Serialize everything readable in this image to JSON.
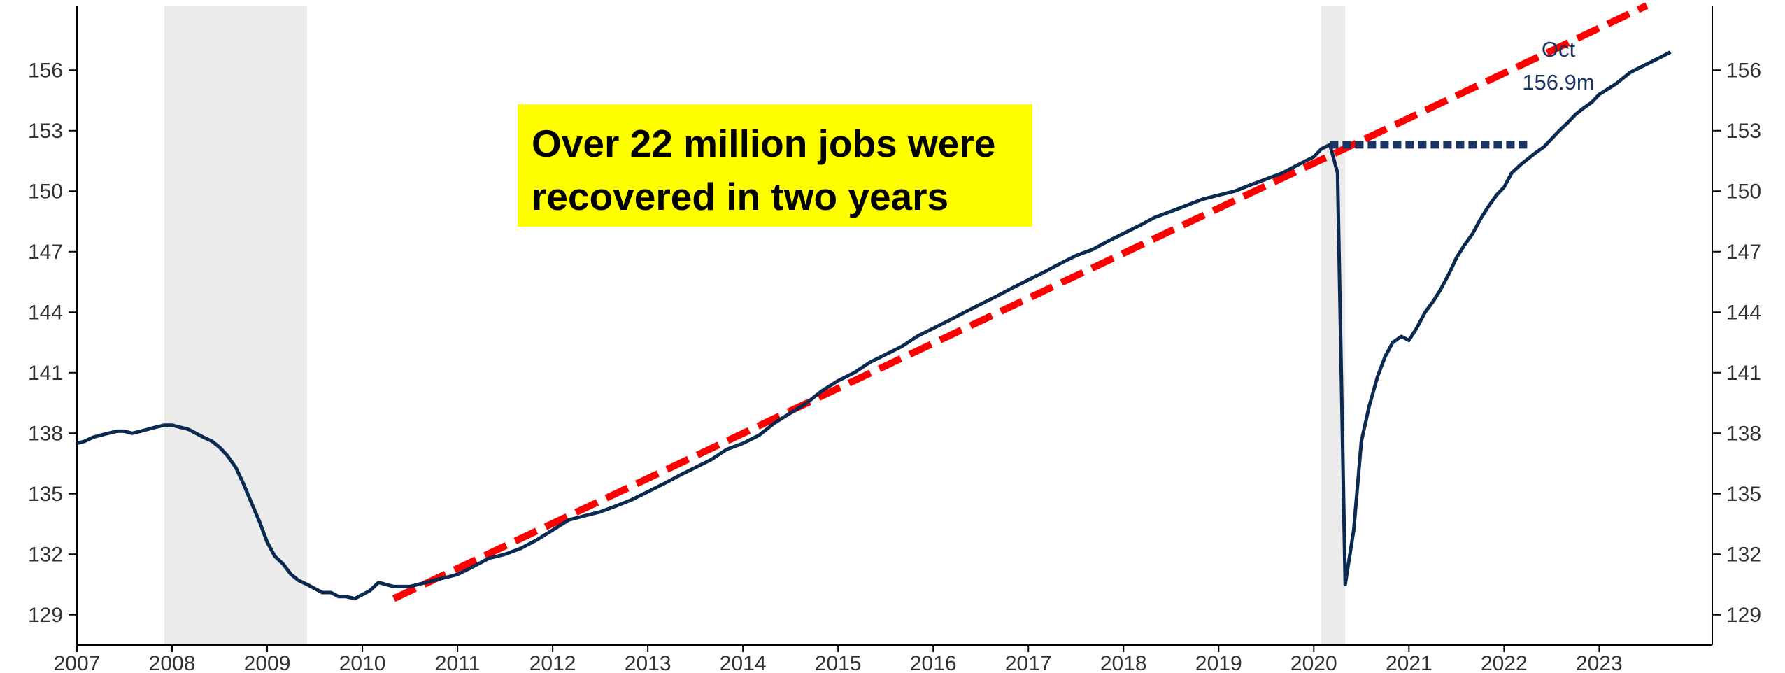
{
  "callout": {
    "line1": "Over 22 million jobs were",
    "line2": "recovered in two years"
  },
  "annotation": {
    "month": "Oct",
    "value": "156.9m"
  },
  "colors": {
    "series": "#0b2a52",
    "trend": "#ff0000",
    "recession": "#ebebeb",
    "callout_bg": "#ffff00",
    "gap_line": "#1c3461"
  },
  "chart_data": {
    "type": "line",
    "title": "",
    "xlabel": "",
    "ylabel": "",
    "xlim": [
      2007.0,
      2023.85
    ],
    "ylim": [
      127.5,
      159.2
    ],
    "x_ticks": [
      "2007",
      "2008",
      "2009",
      "2010",
      "2011",
      "2012",
      "2013",
      "2014",
      "2015",
      "2016",
      "2017",
      "2018",
      "2019",
      "2020",
      "2021",
      "2022",
      "2023"
    ],
    "y_ticks": [
      "129",
      "132",
      "135",
      "138",
      "141",
      "144",
      "147",
      "150",
      "153",
      "156"
    ],
    "y_ticks_right": true,
    "grid": false,
    "legend": "none",
    "recessions": [
      [
        2007.92,
        2009.42
      ],
      [
        2020.08,
        2020.33
      ]
    ],
    "series": [
      {
        "style": "solid",
        "x": [
          2007.0,
          2007.08,
          2007.17,
          2007.25,
          2007.33,
          2007.42,
          2007.5,
          2007.58,
          2007.67,
          2007.75,
          2007.83,
          2007.92,
          2008.0,
          2008.08,
          2008.17,
          2008.25,
          2008.33,
          2008.42,
          2008.5,
          2008.58,
          2008.67,
          2008.75,
          2008.83,
          2008.92,
          2009.0,
          2009.08,
          2009.17,
          2009.25,
          2009.33,
          2009.42,
          2009.5,
          2009.58,
          2009.67,
          2009.75,
          2009.83,
          2009.92,
          2010.0,
          2010.08,
          2010.17,
          2010.25,
          2010.33,
          2010.42,
          2010.5,
          2010.58,
          2010.67,
          2010.75,
          2010.83,
          2010.92,
          2011.0,
          2011.17,
          2011.33,
          2011.5,
          2011.67,
          2011.83,
          2012.0,
          2012.17,
          2012.33,
          2012.5,
          2012.67,
          2012.83,
          2013.0,
          2013.17,
          2013.33,
          2013.5,
          2013.67,
          2013.83,
          2014.0,
          2014.17,
          2014.33,
          2014.5,
          2014.67,
          2014.83,
          2015.0,
          2015.17,
          2015.33,
          2015.5,
          2015.67,
          2015.83,
          2016.0,
          2016.17,
          2016.33,
          2016.5,
          2016.67,
          2016.83,
          2017.0,
          2017.17,
          2017.33,
          2017.5,
          2017.67,
          2017.83,
          2018.0,
          2018.17,
          2018.33,
          2018.5,
          2018.67,
          2018.83,
          2019.0,
          2019.17,
          2019.33,
          2019.5,
          2019.67,
          2019.83,
          2020.0,
          2020.08,
          2020.17,
          2020.25,
          2020.33,
          2020.42,
          2020.5,
          2020.58,
          2020.67,
          2020.75,
          2020.83,
          2020.92,
          2021.0,
          2021.08,
          2021.17,
          2021.25,
          2021.33,
          2021.42,
          2021.5,
          2021.58,
          2021.67,
          2021.75,
          2021.83,
          2021.92,
          2022.0,
          2022.08,
          2022.17,
          2022.25,
          2022.33,
          2022.42,
          2022.5,
          2022.58,
          2022.67,
          2022.75,
          2022.83,
          2022.92,
          2023.0,
          2023.17,
          2023.33,
          2023.5,
          2023.67,
          2023.75
        ],
        "values": [
          137.5,
          137.6,
          137.8,
          137.9,
          138.0,
          138.1,
          138.1,
          138.0,
          138.1,
          138.2,
          138.3,
          138.4,
          138.4,
          138.3,
          138.2,
          138.0,
          137.8,
          137.6,
          137.3,
          136.9,
          136.3,
          135.5,
          134.6,
          133.6,
          132.6,
          131.9,
          131.5,
          131.0,
          130.7,
          130.5,
          130.3,
          130.1,
          130.1,
          129.9,
          129.9,
          129.8,
          130.0,
          130.2,
          130.6,
          130.5,
          130.4,
          130.4,
          130.4,
          130.5,
          130.6,
          130.7,
          130.8,
          130.9,
          131.0,
          131.4,
          131.8,
          132.0,
          132.3,
          132.7,
          133.2,
          133.7,
          133.9,
          134.1,
          134.4,
          134.7,
          135.1,
          135.5,
          135.9,
          136.3,
          136.7,
          137.2,
          137.5,
          137.9,
          138.5,
          139.0,
          139.5,
          140.1,
          140.6,
          141.0,
          141.5,
          141.9,
          142.3,
          142.8,
          143.2,
          143.6,
          144.0,
          144.4,
          144.8,
          145.2,
          145.6,
          146.0,
          146.4,
          146.8,
          147.1,
          147.5,
          147.9,
          148.3,
          148.7,
          149.0,
          149.3,
          149.6,
          149.8,
          150.0,
          150.3,
          150.6,
          150.9,
          151.3,
          151.7,
          152.1,
          152.3,
          150.9,
          130.5,
          133.2,
          137.6,
          139.3,
          140.8,
          141.8,
          142.5,
          142.8,
          142.6,
          143.2,
          144.0,
          144.5,
          145.1,
          145.9,
          146.7,
          147.3,
          147.9,
          148.6,
          149.2,
          149.8,
          150.2,
          150.9,
          151.3,
          151.6,
          151.9,
          152.2,
          152.6,
          153.0,
          153.4,
          153.8,
          154.1,
          154.4,
          154.8,
          155.3,
          155.9,
          156.3,
          156.7,
          156.9
        ]
      },
      {
        "style": "dashed",
        "x": [
          2010.33,
          2023.5
        ],
        "values": [
          129.8,
          159.2
        ]
      },
      {
        "style": "dotted",
        "x": [
          2020.17,
          2022.25
        ],
        "values": [
          152.3,
          152.3
        ]
      }
    ]
  }
}
